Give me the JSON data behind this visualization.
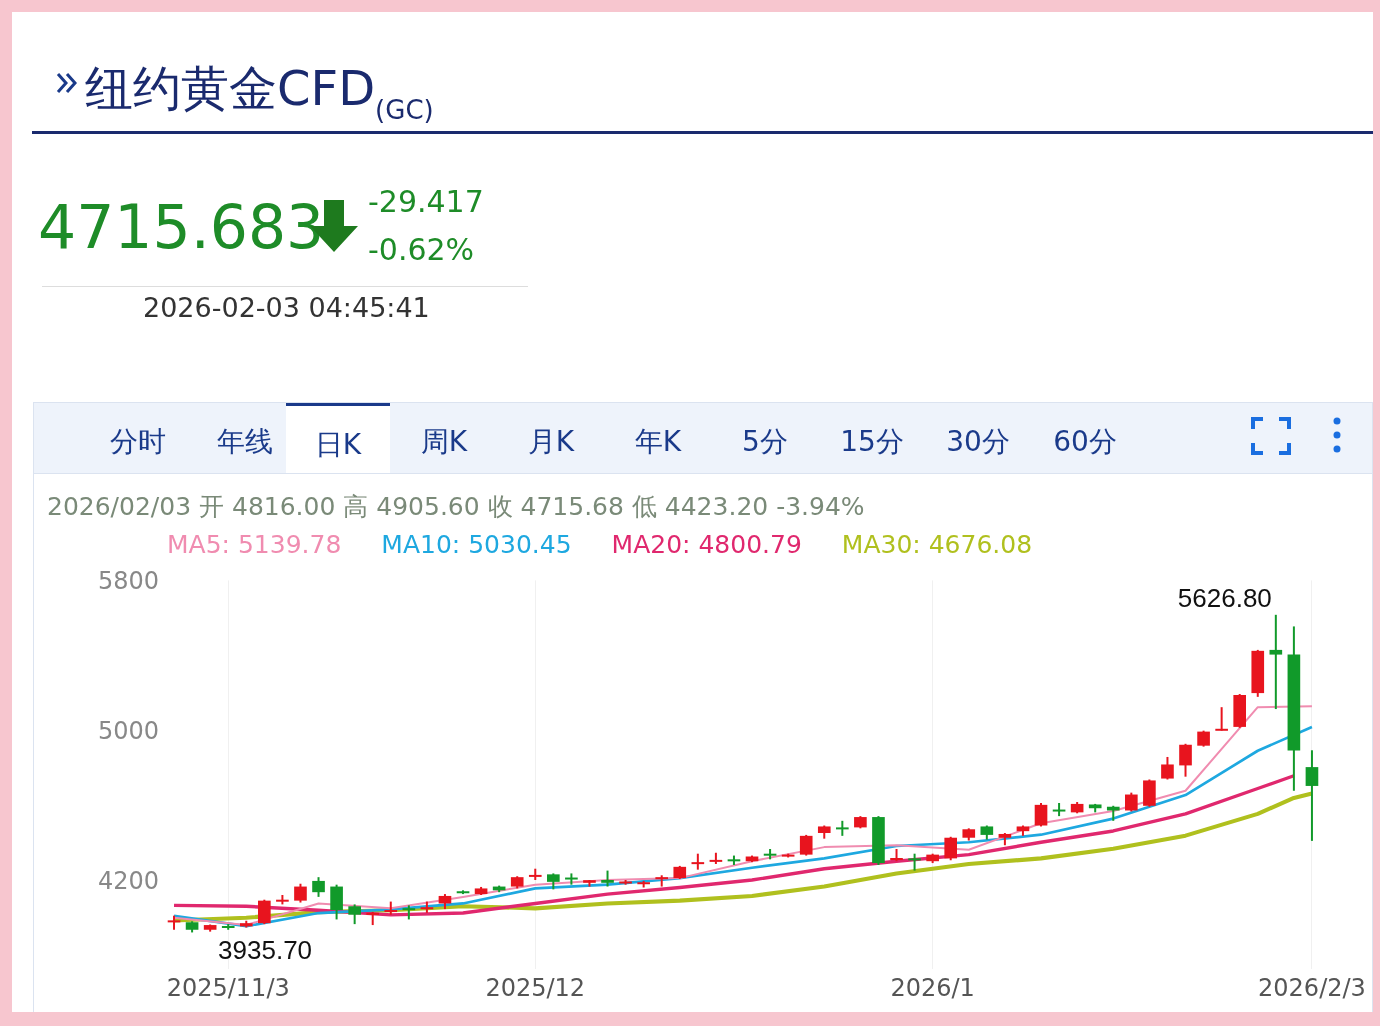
{
  "chart_data": {
    "type": "candlestick",
    "title": "纽约黄金CFD$_{(GC)}$",
    "annotations": [
      "4715.683",
      "-29.417",
      "-0.62%",
      "2026-02-03 04:45:41",
      "分时",
      "年线",
      "日K",
      "周K",
      "月K",
      "年K",
      "5分",
      "15分",
      "30分",
      "60分",
      "2026/02/03 开 4816.00 高 4905.60 收 4715.68 低 4423.20 -3.94%",
      "5626.80",
      "3935.70"
    ],
    "categories": [
      null,
      null,
      null,
      "2025/11/3",
      null,
      null,
      null,
      null,
      null,
      null,
      null,
      null,
      null,
      null,
      null,
      null,
      null,
      null,
      null,
      null,
      "2025/12",
      null,
      null,
      null,
      null,
      null,
      null,
      null,
      null,
      null,
      null,
      null,
      null,
      null,
      null,
      null,
      null,
      null,
      null,
      null,
      null,
      null,
      "2026/1",
      null,
      null,
      null,
      null,
      null,
      null,
      null,
      null,
      null,
      null,
      null,
      null,
      null,
      null,
      null,
      null,
      null,
      null,
      null,
      null,
      "2026/2/3"
    ],
    "ohlc": [
      [
        3995,
        4025,
        3950,
        4000
      ],
      [
        3990,
        3995,
        3935.7,
        3950
      ],
      [
        3950,
        3978,
        3940,
        3975
      ],
      [
        3970,
        3980,
        3950,
        3960
      ],
      [
        3968,
        3998,
        3962,
        3985
      ],
      [
        3985,
        4110,
        3980,
        4105
      ],
      [
        4100,
        4135,
        4085,
        4110
      ],
      [
        4105,
        4195,
        4095,
        4180
      ],
      [
        4210,
        4230,
        4125,
        4150
      ],
      [
        4180,
        4190,
        4005,
        4055
      ],
      [
        4075,
        4085,
        3980,
        4030
      ],
      [
        4030,
        4045,
        3975,
        4040
      ],
      [
        4050,
        4100,
        4030,
        4055
      ],
      [
        4065,
        4080,
        4005,
        4060
      ],
      [
        4060,
        4100,
        4040,
        4070
      ],
      [
        4090,
        4140,
        4060,
        4130
      ],
      [
        4155,
        4160,
        4140,
        4148
      ],
      [
        4140,
        4178,
        4135,
        4170
      ],
      [
        4180,
        4185,
        4150,
        4160
      ],
      [
        4180,
        4235,
        4170,
        4230
      ],
      [
        4235,
        4275,
        4215,
        4242
      ],
      [
        4245,
        4250,
        4165,
        4205
      ],
      [
        4228,
        4250,
        4190,
        4222
      ],
      [
        4200,
        4215,
        4180,
        4214
      ],
      [
        4215,
        4265,
        4180,
        4200
      ],
      [
        4203,
        4215,
        4190,
        4207
      ],
      [
        4198,
        4210,
        4175,
        4203
      ],
      [
        4220,
        4240,
        4180,
        4230
      ],
      [
        4225,
        4290,
        4220,
        4285
      ],
      [
        4300,
        4355,
        4270,
        4310
      ],
      [
        4315,
        4360,
        4300,
        4322
      ],
      [
        4325,
        4345,
        4295,
        4318
      ],
      [
        4315,
        4345,
        4310,
        4340
      ],
      [
        4355,
        4380,
        4325,
        4348
      ],
      [
        4340,
        4355,
        4335,
        4350
      ],
      [
        4350,
        4455,
        4345,
        4450
      ],
      [
        4465,
        4505,
        4435,
        4500
      ],
      [
        4495,
        4530,
        4450,
        4488
      ],
      [
        4495,
        4555,
        4490,
        4550
      ],
      [
        4550,
        4555,
        4295,
        4305
      ],
      [
        4325,
        4380,
        4315,
        4332
      ],
      [
        4330,
        4355,
        4265,
        4322
      ],
      [
        4315,
        4355,
        4305,
        4350
      ],
      [
        4330,
        4445,
        4320,
        4440
      ],
      [
        4440,
        4490,
        4425,
        4485
      ],
      [
        4500,
        4505,
        4430,
        4455
      ],
      [
        4440,
        4465,
        4400,
        4460
      ],
      [
        4475,
        4505,
        4450,
        4500
      ],
      [
        4505,
        4625,
        4500,
        4615
      ],
      [
        4590,
        4625,
        4555,
        4585
      ],
      [
        4575,
        4630,
        4570,
        4620
      ],
      [
        4617,
        4620,
        4575,
        4597
      ],
      [
        4605,
        4610,
        4530,
        4585
      ],
      [
        4585,
        4680,
        4580,
        4670
      ],
      [
        4610,
        4750,
        4605,
        4745
      ],
      [
        4755,
        4870,
        4750,
        4830
      ],
      [
        4825,
        4940,
        4765,
        4935
      ],
      [
        4930,
        5010,
        4925,
        5005
      ],
      [
        5012,
        5135,
        5010,
        5020
      ],
      [
        5030,
        5205,
        5025,
        5200
      ],
      [
        5210,
        5440,
        5190,
        5435
      ],
      [
        5440,
        5626.8,
        5125,
        5415
      ],
      [
        5415,
        5565,
        4690,
        4905
      ],
      [
        4816,
        4905.6,
        4423.2,
        4715.68
      ]
    ],
    "colors": [
      "#e8141e",
      "#119a2a",
      "#e8141e",
      "#119a2a",
      "#e8141e",
      "#e8141e",
      "#e8141e",
      "#e8141e",
      "#119a2a",
      "#119a2a",
      "#119a2a",
      "#e8141e",
      "#e8141e",
      "#119a2a",
      "#e8141e",
      "#e8141e",
      "#119a2a",
      "#e8141e",
      "#119a2a",
      "#e8141e",
      "#e8141e",
      "#119a2a",
      "#119a2a",
      "#e8141e",
      "#119a2a",
      "#e8141e",
      "#e8141e",
      "#e8141e",
      "#e8141e",
      "#e8141e",
      "#e8141e",
      "#119a2a",
      "#e8141e",
      "#119a2a",
      "#e8141e",
      "#e8141e",
      "#e8141e",
      "#119a2a",
      "#e8141e",
      "#119a2a",
      "#e8141e",
      "#119a2a",
      "#e8141e",
      "#e8141e",
      "#e8141e",
      "#119a2a",
      "#e8141e",
      "#e8141e",
      "#e8141e",
      "#119a2a",
      "#e8141e",
      "#119a2a",
      "#119a2a",
      "#e8141e",
      "#e8141e",
      "#e8141e",
      "#e8141e",
      "#e8141e",
      "#e8141e",
      "#e8141e",
      "#e8141e",
      "#119a2a",
      "#119a2a",
      "#119a2a"
    ],
    "series": [
      {
        "name": "MA5: 5139.78",
        "type": "line",
        "color": "#f08cb0",
        "values": [
          4014,
          null,
          null,
          null,
          3975,
          null,
          null,
          null,
          4090,
          null,
          null,
          null,
          4065,
          null,
          null,
          null,
          4125,
          null,
          null,
          null,
          4190,
          null,
          null,
          null,
          4215,
          null,
          null,
          null,
          4225,
          null,
          null,
          null,
          4315,
          null,
          null,
          null,
          4390,
          null,
          null,
          null,
          4400,
          null,
          null,
          null,
          4376,
          null,
          null,
          null,
          4517,
          null,
          null,
          null,
          4582,
          null,
          null,
          null,
          4690,
          null,
          null,
          null,
          5135,
          null,
          null,
          5140
        ]
      },
      {
        "name": "MA10: 5030.45",
        "type": "line",
        "color": "#1ea8e0",
        "values": [
          4024,
          null,
          null,
          null,
          3969,
          null,
          null,
          null,
          4039,
          null,
          null,
          null,
          4059,
          null,
          null,
          null,
          4090,
          null,
          null,
          null,
          4170,
          null,
          null,
          null,
          4190,
          null,
          null,
          null,
          4225,
          null,
          null,
          null,
          4280,
          null,
          null,
          null,
          4330,
          null,
          null,
          null,
          4396,
          null,
          null,
          null,
          4416,
          null,
          null,
          null,
          4456,
          null,
          null,
          null,
          4542,
          null,
          null,
          null,
          4667,
          null,
          null,
          null,
          4903,
          null,
          null,
          5030
        ]
      },
      {
        "name": "MA20: 4800.79",
        "type": "line",
        "color": "#e0286e",
        "values": [
          4080,
          null,
          null,
          null,
          4075,
          null,
          null,
          null,
          4054,
          null,
          null,
          null,
          4029,
          null,
          null,
          null,
          4039,
          null,
          null,
          null,
          4090,
          null,
          null,
          null,
          4140,
          null,
          null,
          null,
          4175,
          null,
          null,
          null,
          4215,
          null,
          null,
          null,
          4275,
          null,
          null,
          null,
          4315,
          null,
          null,
          null,
          4350,
          null,
          null,
          null,
          4416,
          null,
          null,
          null,
          4476,
          null,
          null,
          null,
          4567,
          null,
          null,
          null,
          4702,
          null,
          4770,
          null
        ]
      },
      {
        "name": "MA30: 4676.08",
        "type": "line",
        "color": "#b0c01e",
        "values": [
          3999,
          null,
          null,
          null,
          4014,
          null,
          null,
          null,
          4044,
          null,
          null,
          null,
          4054,
          null,
          null,
          null,
          4075,
          null,
          null,
          null,
          4064,
          null,
          null,
          null,
          4090,
          null,
          null,
          null,
          4105,
          null,
          null,
          null,
          4130,
          null,
          null,
          null,
          4180,
          null,
          null,
          null,
          4250,
          null,
          null,
          null,
          4300,
          null,
          null,
          null,
          4330,
          null,
          null,
          null,
          4381,
          null,
          null,
          null,
          4451,
          null,
          null,
          null,
          4567,
          null,
          4652,
          4676
        ]
      }
    ],
    "ylim": [
      3740,
      5810
    ],
    "yticks": [
      4200,
      5000,
      5800
    ],
    "grid": "x",
    "marker": "none",
    "line_style": "solid"
  }
}
